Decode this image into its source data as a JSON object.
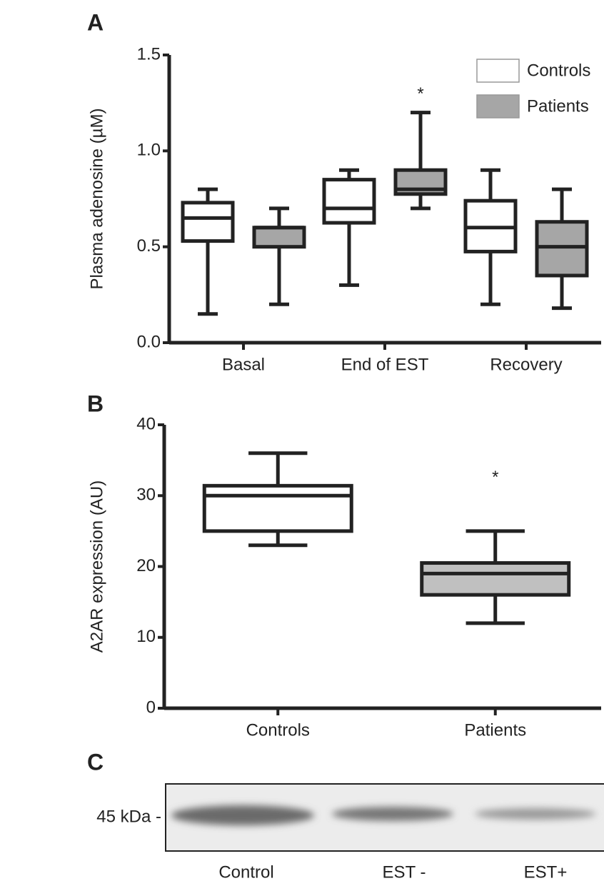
{
  "chart_data": [
    {
      "type": "box",
      "panel": "A",
      "ylabel": "Plasma adenosine (µM)",
      "categories": [
        "Basal",
        "End of EST",
        "Recovery"
      ],
      "series": [
        {
          "name": "Controls",
          "color": "#ffffff",
          "values": [
            {
              "min": 0.15,
              "q1": 0.53,
              "median": 0.65,
              "q3": 0.73,
              "max": 0.8
            },
            {
              "min": 0.3,
              "q1": 0.625,
              "median": 0.7,
              "q3": 0.85,
              "max": 0.9
            },
            {
              "min": 0.2,
              "q1": 0.475,
              "median": 0.6,
              "q3": 0.74,
              "max": 0.9
            }
          ]
        },
        {
          "name": "Patients",
          "color": "#a6a6a6",
          "values": [
            {
              "min": 0.2,
              "q1": 0.5,
              "median": 0.6,
              "q3": 0.6,
              "max": 0.7
            },
            {
              "min": 0.7,
              "q1": 0.775,
              "median": 0.8,
              "q3": 0.9,
              "max": 1.2
            },
            {
              "min": 0.18,
              "q1": 0.35,
              "median": 0.5,
              "q3": 0.63,
              "max": 0.8
            }
          ]
        }
      ],
      "ylim": [
        0,
        1.5
      ],
      "yticks": [
        {
          "value": 0,
          "label": "0.0"
        },
        0.5,
        {
          "value": 1,
          "label": "1.0"
        },
        1.5
      ],
      "legend": "top-right",
      "annotations": [
        {
          "text": "*",
          "category": "End of EST",
          "series": "Patients"
        }
      ]
    },
    {
      "type": "box",
      "panel": "B",
      "ylabel": "A2AR expression (AU)",
      "categories": [
        "Controls",
        "Patients"
      ],
      "colors": [
        "#ffffff",
        "#c0c0c0"
      ],
      "values": [
        {
          "min": 23,
          "q1": 25,
          "median": 30,
          "q3": 31.4,
          "max": 36
        },
        {
          "min": 12,
          "q1": 16,
          "median": 19,
          "q3": 20.5,
          "max": 25
        }
      ],
      "ylim": [
        0,
        40
      ],
      "yticks": [
        0,
        10,
        20,
        30,
        40
      ],
      "annotations": [
        {
          "text": "*",
          "category": "Patients"
        }
      ]
    }
  ],
  "blot": {
    "panel": "C",
    "marker": "45 kDa -",
    "lanes": [
      "Control",
      "EST -",
      "EST+"
    ]
  }
}
